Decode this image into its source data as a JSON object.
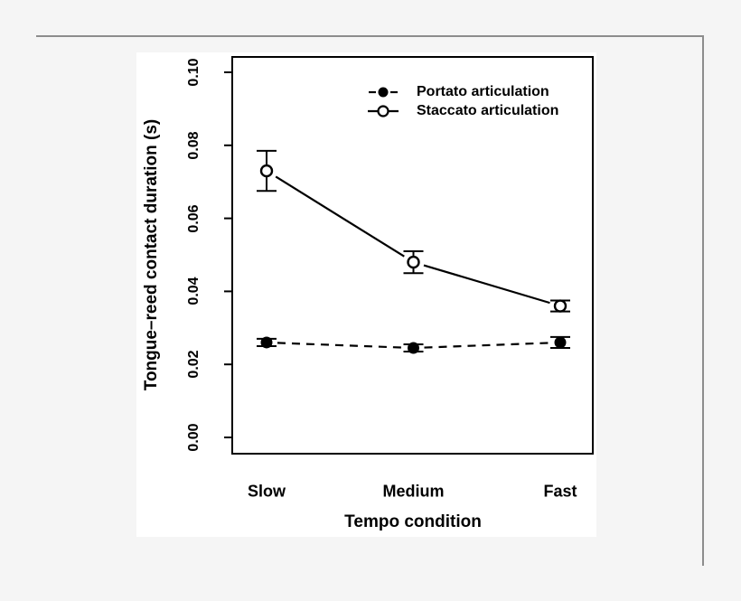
{
  "figure": {
    "background_color": "#f5f5f5",
    "panel_color": "#ffffff",
    "frame_color": "#8d8d8d",
    "ink_color": "#000000"
  },
  "chart_data": {
    "type": "line",
    "title": "",
    "xlabel": "Tempo condition",
    "ylabel": "Tongue–reed contact duration (s)",
    "categories": [
      "Slow",
      "Medium",
      "Fast"
    ],
    "y_ticks": [
      "0.00",
      "0.02",
      "0.04",
      "0.06",
      "0.08",
      "0.10"
    ],
    "ylim": [
      0,
      0.1
    ],
    "grid": false,
    "legend_position": "top-inside",
    "error_bars": true,
    "series": [
      {
        "name": "Portato articulation",
        "marker": "filled-circle",
        "line_style": "dashed",
        "values": [
          0.026,
          0.0245,
          0.026
        ],
        "errors": [
          0.001,
          0.001,
          0.0015
        ]
      },
      {
        "name": "Staccato articulation",
        "marker": "open-circle",
        "line_style": "solid",
        "values": [
          0.073,
          0.048,
          0.036
        ],
        "errors": [
          0.0055,
          0.003,
          0.0015
        ]
      }
    ]
  }
}
